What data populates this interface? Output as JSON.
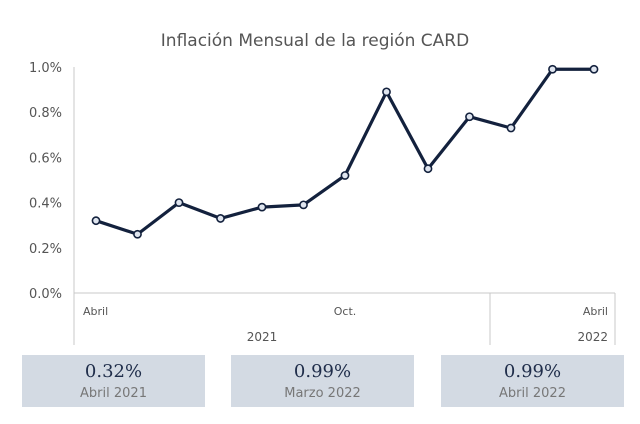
{
  "chart_data": {
    "type": "line",
    "title": "Inflación Mensual de la región CARD",
    "ylim": [
      0,
      1.0
    ],
    "yticks": [
      "0.0%",
      "0.2%",
      "0.4%",
      "0.6%",
      "0.8%",
      "1.0%"
    ],
    "month_labels": [
      {
        "index": 0,
        "text": "Abril"
      },
      {
        "index": 6,
        "text": "Oct."
      },
      {
        "index": 12,
        "text": "Abril"
      }
    ],
    "year_labels": [
      {
        "from": 0,
        "to": 8,
        "text": "2021"
      },
      {
        "from": 9,
        "to": 12,
        "text": "2022"
      }
    ],
    "x": [
      "2021-04",
      "2021-05",
      "2021-06",
      "2021-07",
      "2021-08",
      "2021-09",
      "2021-10",
      "2021-11",
      "2021-12",
      "2022-01",
      "2022-02",
      "2022-03",
      "2022-04"
    ],
    "series": [
      {
        "values": [
          0.32,
          0.26,
          0.4,
          0.33,
          0.38,
          0.39,
          0.52,
          0.89,
          0.55,
          0.78,
          0.73,
          0.99,
          0.99
        ],
        "color": "#13213d"
      }
    ],
    "grid": false
  },
  "cards": [
    {
      "value": "0.32%",
      "label": "Abril 2021"
    },
    {
      "value": "0.99%",
      "label": "Marzo 2022"
    },
    {
      "value": "0.99%",
      "label": "Abril 2022"
    }
  ]
}
